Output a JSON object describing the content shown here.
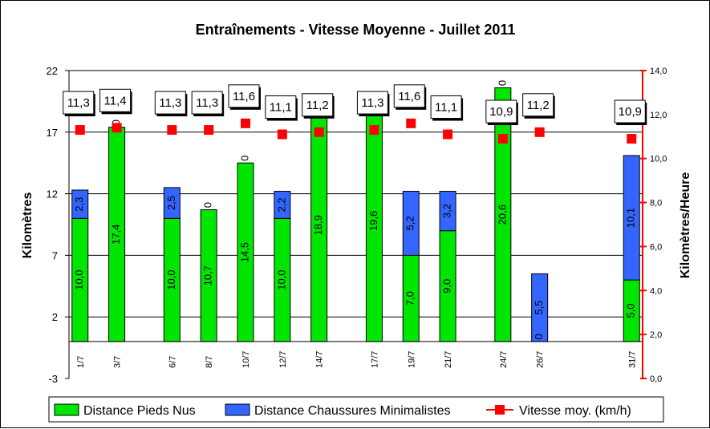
{
  "chart_data": {
    "type": "bar",
    "title": "Entraînements - Vitesse Moyenne - Juillet 2011",
    "ylabel": "Kilomètres",
    "y2label": "Kilomètres/Heure",
    "ylim": [
      -3,
      22
    ],
    "yticks": [
      "-3",
      "2",
      "7",
      "12",
      "17",
      "22"
    ],
    "y2lim": [
      0,
      14
    ],
    "y2ticks": [
      "0,0",
      "2,0",
      "4,0",
      "6,0",
      "8,0",
      "10,0",
      "12,0",
      "14,0"
    ],
    "stacked": true,
    "grid": true,
    "legend_position": "bottom",
    "categories": [
      "1/7",
      "3/7",
      "6/7",
      "8/7",
      "10/7",
      "12/7",
      "14/7",
      "17/7",
      "19/7",
      "21/7",
      "24/7",
      "26/7",
      "31/7"
    ],
    "day_of_month": [
      1,
      3,
      6,
      8,
      10,
      12,
      14,
      17,
      19,
      21,
      24,
      26,
      31
    ],
    "series": [
      {
        "name": "Distance Pieds Nus",
        "color": "#00e600",
        "values": [
          10.0,
          17.4,
          10.0,
          10.7,
          14.5,
          10.0,
          18.9,
          19.6,
          7.0,
          9.0,
          20.6,
          0,
          5.0
        ],
        "labels": [
          "10,0",
          "17,4",
          "10,0",
          "10,7",
          "14,5",
          "10,0",
          "18,9",
          "19,6",
          "7,0",
          "9,0",
          "20,6",
          "0",
          "5,0"
        ]
      },
      {
        "name": "Distance Chaussures Minimalistes",
        "color": "#3366ff",
        "values": [
          2.3,
          0,
          2.5,
          0,
          0,
          2.2,
          0,
          0,
          5.2,
          3.2,
          0,
          5.5,
          10.1
        ],
        "labels": [
          "2,3",
          "0",
          "2,5",
          "0",
          "0",
          "2,2",
          "0",
          "0",
          "5,2",
          "3,2",
          "0",
          "5,5",
          "10,1"
        ]
      },
      {
        "name": "Vitesse moy. (km/h)",
        "type": "scatter",
        "axis": "right",
        "color": "#ff0000",
        "values": [
          11.3,
          11.4,
          11.3,
          11.3,
          11.6,
          11.1,
          11.2,
          11.3,
          11.6,
          11.1,
          10.9,
          11.2,
          10.9
        ],
        "labels": [
          "11,3",
          "11,4",
          "11,3",
          "11,3",
          "11,6",
          "11,1",
          "11,2",
          "11,3",
          "11,6",
          "11,1",
          "10,9",
          "11,2",
          "10,9"
        ]
      }
    ]
  }
}
